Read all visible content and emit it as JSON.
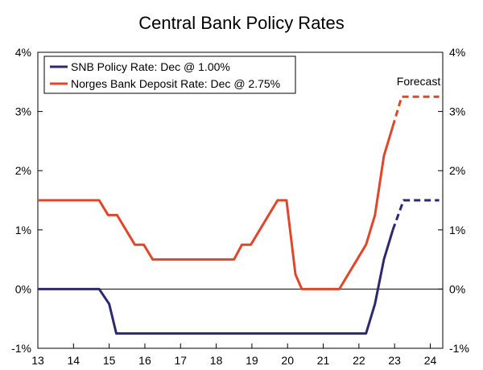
{
  "chart_data": {
    "type": "line",
    "title": "Central Bank Policy Rates",
    "xlabel": "",
    "ylabel": "",
    "xlim": [
      13,
      24.35
    ],
    "ylim": [
      -1,
      4
    ],
    "y_ticks": [
      -1,
      0,
      1,
      2,
      3,
      4
    ],
    "y_tick_labels": [
      "-1%",
      "0%",
      "1%",
      "2%",
      "3%",
      "4%"
    ],
    "x_ticks": [
      13,
      14,
      15,
      16,
      17,
      18,
      19,
      20,
      21,
      22,
      23,
      24
    ],
    "x_tick_labels": [
      "13",
      "14",
      "15",
      "16",
      "17",
      "18",
      "19",
      "20",
      "21",
      "22",
      "23",
      "24"
    ],
    "grid": false,
    "zero_line": true,
    "legend_position": "top-left",
    "forecast_label": "Forecast",
    "series": [
      {
        "name": "SNB Policy Rate: Dec @ 1.00%",
        "color": "#2b2a6e",
        "actual": [
          [
            13.0,
            0.0
          ],
          [
            14.72,
            0.0
          ],
          [
            15.0,
            -0.25
          ],
          [
            15.2,
            -0.75
          ],
          [
            18.0,
            -0.75
          ],
          [
            22.2,
            -0.75
          ],
          [
            22.45,
            -0.25
          ],
          [
            22.7,
            0.5
          ],
          [
            22.95,
            1.0
          ]
        ],
        "forecast": [
          [
            22.95,
            1.0
          ],
          [
            23.25,
            1.5
          ],
          [
            24.25,
            1.5
          ]
        ]
      },
      {
        "name": "Norges Bank Deposit Rate: Dec @ 2.75%",
        "color": "#e0462a",
        "actual": [
          [
            13.0,
            1.5
          ],
          [
            14.72,
            1.5
          ],
          [
            14.97,
            1.25
          ],
          [
            15.22,
            1.25
          ],
          [
            15.72,
            0.75
          ],
          [
            15.97,
            0.75
          ],
          [
            16.22,
            0.5
          ],
          [
            18.5,
            0.5
          ],
          [
            18.72,
            0.75
          ],
          [
            18.97,
            0.75
          ],
          [
            19.72,
            1.5
          ],
          [
            19.97,
            1.5
          ],
          [
            20.22,
            0.25
          ],
          [
            20.4,
            0.0
          ],
          [
            21.45,
            0.0
          ],
          [
            22.2,
            0.75
          ],
          [
            22.45,
            1.25
          ],
          [
            22.7,
            2.25
          ],
          [
            22.95,
            2.75
          ]
        ],
        "forecast": [
          [
            22.95,
            2.75
          ],
          [
            23.2,
            3.25
          ],
          [
            24.25,
            3.25
          ]
        ]
      }
    ]
  }
}
